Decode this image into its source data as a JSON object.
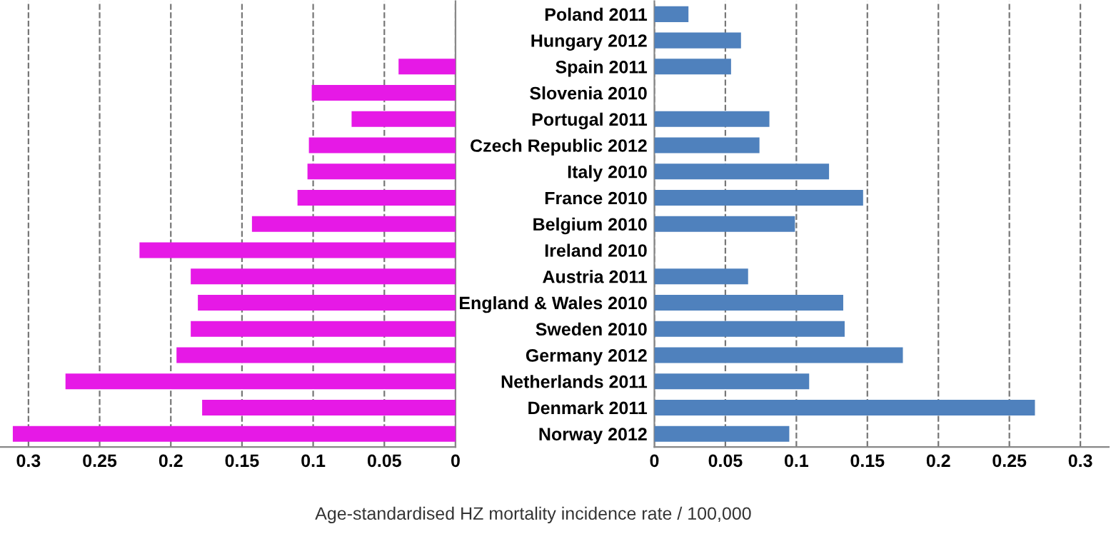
{
  "chart_data": [
    {
      "type": "bar",
      "orientation": "horizontal",
      "series": [
        {
          "color": "#e619e6",
          "values": [
            null,
            null,
            0.04,
            0.101,
            0.073,
            0.103,
            0.104,
            0.111,
            0.143,
            0.222,
            0.186,
            0.181,
            0.186,
            0.196,
            0.274,
            0.178,
            0.311
          ]
        }
      ],
      "xlim": [
        0.32,
        0
      ],
      "xticks": [
        0.3,
        0.25,
        0.2,
        0.15,
        0.1,
        0.05,
        0
      ],
      "grid": "x",
      "tick_labels": "x"
    },
    {
      "type": "bar",
      "orientation": "horizontal",
      "categories": [
        "Poland 2011",
        "Hungary 2012",
        "Spain 2011",
        "Slovenia 2010",
        "Portugal 2011",
        "Czech Republic 2012",
        "Italy 2010",
        "France 2010",
        "Belgium 2010",
        "Ireland 2010",
        "Austria 2011",
        "England & Wales 2010",
        "Sweden 2010",
        "Germany 2012",
        "Netherlands 2011",
        "Denmark 2011",
        "Norway 2012"
      ],
      "series": [
        {
          "color": "#4f81bd",
          "values": [
            0.024,
            0.061,
            0.054,
            null,
            0.081,
            0.074,
            0.123,
            0.147,
            0.099,
            null,
            0.066,
            0.133,
            0.134,
            0.175,
            0.109,
            0.268,
            0.095
          ]
        }
      ],
      "xlim": [
        0,
        0.32
      ],
      "xticks": [
        0,
        0.05,
        0.1,
        0.15,
        0.2,
        0.25,
        0.3
      ],
      "grid": "x",
      "xlabel": "Age-standardised HZ mortality incidence rate / 100,000"
    }
  ]
}
